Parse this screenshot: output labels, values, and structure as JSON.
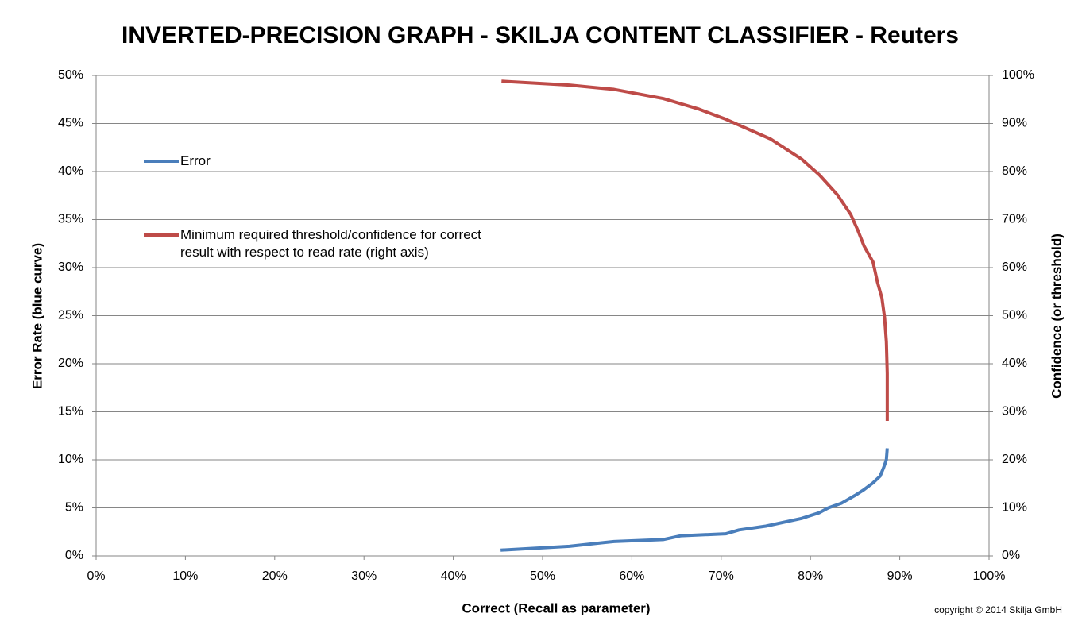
{
  "chart_data": {
    "type": "line",
    "title": "INVERTED-PRECISION GRAPH - SKILJA CONTENT CLASSIFIER - Reuters",
    "x_label": "Correct (Recall as parameter)",
    "y_label": "Error Rate (blue curve)",
    "y2_label": "Confidence (or threshold)",
    "copyright": "copyright ©  2014 Skilja GmbH",
    "xlim": [
      0,
      100
    ],
    "xticks": [
      {
        "value": 0,
        "label": "0%"
      },
      {
        "value": 10,
        "label": "10%"
      },
      {
        "value": 20,
        "label": "20%"
      },
      {
        "value": 30,
        "label": "30%"
      },
      {
        "value": 40,
        "label": "40%"
      },
      {
        "value": 50,
        "label": "50%"
      },
      {
        "value": 60,
        "label": "60%"
      },
      {
        "value": 70,
        "label": "70%"
      },
      {
        "value": 80,
        "label": "80%"
      },
      {
        "value": 90,
        "label": "90%"
      },
      {
        "value": 100,
        "label": "100%"
      }
    ],
    "ylim": [
      0,
      50
    ],
    "yticks": [
      {
        "value": 0,
        "label": "0%"
      },
      {
        "value": 5,
        "label": "5%"
      },
      {
        "value": 10,
        "label": "10%"
      },
      {
        "value": 15,
        "label": "15%"
      },
      {
        "value": 20,
        "label": "20%"
      },
      {
        "value": 25,
        "label": "25%"
      },
      {
        "value": 30,
        "label": "30%"
      },
      {
        "value": 35,
        "label": "35%"
      },
      {
        "value": 40,
        "label": "40%"
      },
      {
        "value": 45,
        "label": "45%"
      },
      {
        "value": 50,
        "label": "50%"
      }
    ],
    "y2lim": [
      0,
      100
    ],
    "y2ticks": [
      {
        "value": 0,
        "label": "0%"
      },
      {
        "value": 10,
        "label": "10%"
      },
      {
        "value": 20,
        "label": "20%"
      },
      {
        "value": 30,
        "label": "30%"
      },
      {
        "value": 40,
        "label": "40%"
      },
      {
        "value": 50,
        "label": "50%"
      },
      {
        "value": 60,
        "label": "60%"
      },
      {
        "value": 70,
        "label": "70%"
      },
      {
        "value": 80,
        "label": "80%"
      },
      {
        "value": 90,
        "label": "90%"
      },
      {
        "value": 100,
        "label": "100%"
      }
    ],
    "grid": true,
    "legend": "left",
    "series": [
      {
        "name": "Error",
        "color": "#4a7ebb",
        "x": [
          45.3,
          53,
          58,
          63.5,
          65.5,
          70.5,
          72,
          75,
          79,
          81,
          82,
          83.5,
          85,
          86,
          87,
          87.8,
          88.2,
          88.5,
          88.6
        ],
        "values": [
          0.6,
          1.0,
          1.5,
          1.7,
          2.1,
          2.3,
          2.7,
          3.1,
          3.9,
          4.5,
          5.0,
          5.5,
          6.3,
          6.9,
          7.6,
          8.3,
          9.2,
          10.0,
          11.2
        ]
      },
      {
        "name": "Minimum required threshold/confidence for correct result with respect to read rate (right axis)",
        "color": "#be4b48",
        "axis": "y2",
        "x": [
          45.4,
          53,
          58,
          63.5,
          67.5,
          70.5,
          75.5,
          79,
          81,
          83,
          84.5,
          85.3,
          86,
          87,
          87.5,
          88,
          88.3,
          88.5,
          88.6,
          88.6
        ],
        "values": [
          98.8,
          98.0,
          97.1,
          95.2,
          93.0,
          90.9,
          86.8,
          82.6,
          79.3,
          75.2,
          71.1,
          67.8,
          64.5,
          61.2,
          57.0,
          53.7,
          49.6,
          44.6,
          38.0,
          28.1
        ]
      }
    ]
  }
}
